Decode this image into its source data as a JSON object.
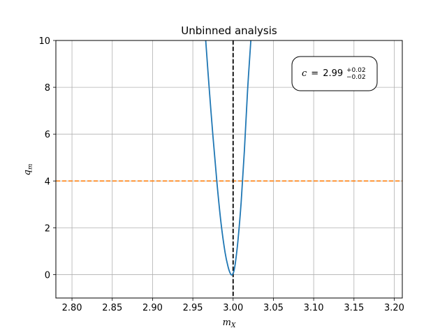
{
  "chart_data": {
    "type": "line",
    "title": "Unbinned analysis",
    "xlabel": {
      "base": "m",
      "sub": "X"
    },
    "ylabel": {
      "base": "q",
      "sub": "m"
    },
    "xlim": [
      2.78,
      3.21
    ],
    "ylim": [
      -1,
      10
    ],
    "xticks": [
      2.8,
      2.85,
      2.9,
      2.95,
      3.0,
      3.05,
      3.1,
      3.15,
      3.2
    ],
    "xtick_labels": [
      "2.80",
      "2.85",
      "2.90",
      "2.95",
      "3.00",
      "3.05",
      "3.10",
      "3.15",
      "3.20"
    ],
    "yticks": [
      0,
      2,
      4,
      6,
      8,
      10
    ],
    "ytick_labels": [
      "0",
      "2",
      "4",
      "6",
      "8",
      "10"
    ],
    "grid": true,
    "series": [
      {
        "style": "solid",
        "color": "#1f77b4",
        "x": [
          2.966,
          2.97,
          2.975,
          2.98,
          2.985,
          2.99,
          2.994,
          2.997,
          2.999,
          3.001,
          3.003,
          3.006,
          3.01,
          3.014,
          3.018,
          3.022
        ],
        "y": [
          10.0,
          8.1,
          5.9,
          3.9,
          2.2,
          0.95,
          0.3,
          0.02,
          0.0,
          0.15,
          0.55,
          1.45,
          3.1,
          5.3,
          7.9,
          10.0
        ]
      }
    ],
    "hlines": [
      {
        "y": 4,
        "style": "dashed",
        "color": "#ff7f0e"
      }
    ],
    "vlines": [
      {
        "x": 3.0,
        "style": "dashed",
        "color": "#000000"
      }
    ],
    "annotation": {
      "symbol": "c",
      "equals": "=",
      "value": "2.99",
      "upper": "+0.02",
      "lower": "−0.02",
      "placement": "top-right"
    }
  }
}
